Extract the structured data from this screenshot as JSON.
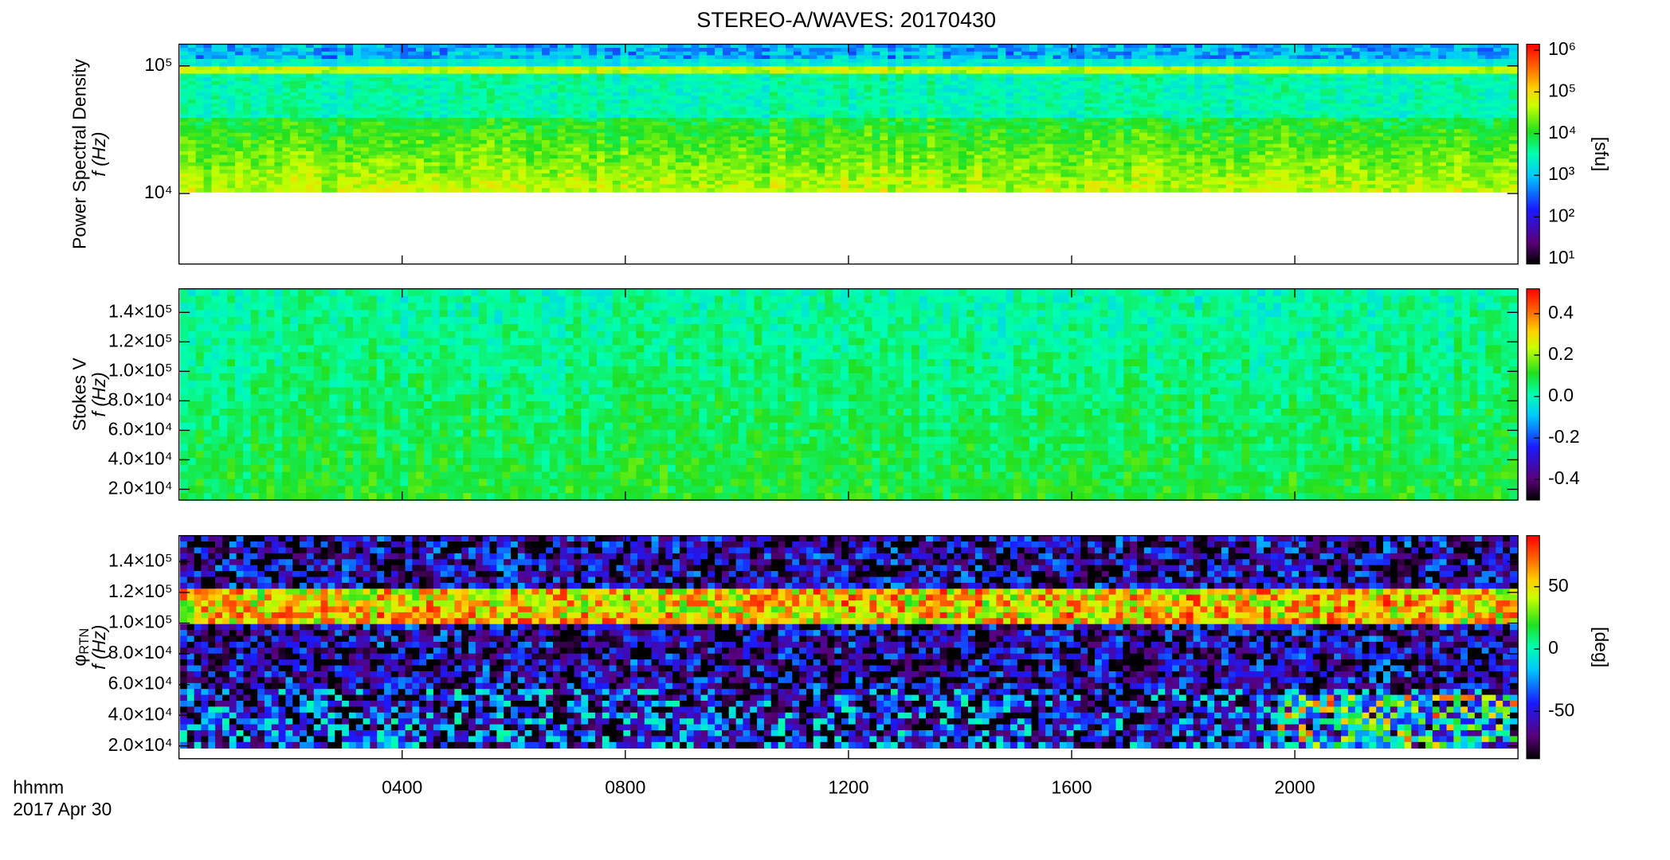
{
  "title": "STEREO-A/WAVES: 20170430",
  "xaxis": {
    "label": "hhmm",
    "date": "2017 Apr 30",
    "xlim": [
      0,
      24
    ],
    "xticks": [
      {
        "value": 4,
        "label": "0400"
      },
      {
        "value": 8,
        "label": "0800"
      },
      {
        "value": 12,
        "label": "1200"
      },
      {
        "value": 16,
        "label": "1600"
      },
      {
        "value": 20,
        "label": "2000"
      }
    ]
  },
  "chart_data": [
    {
      "type": "spectrogram",
      "ylabel": "Power Spectral Density",
      "ylabel2": "f (Hz)",
      "ylog": true,
      "ylim": [
        2800,
        148000
      ],
      "yticks": [
        {
          "value": 10000,
          "label": "10⁴"
        },
        {
          "value": 100000,
          "label": "10⁵"
        }
      ],
      "colorbar": {
        "log": true,
        "lim": [
          7.4,
          1400000
        ],
        "label": "[sfu]",
        "ticks": [
          {
            "value": 10,
            "label": "10¹"
          },
          {
            "value": 100,
            "label": "10²"
          },
          {
            "value": 1000,
            "label": "10³"
          },
          {
            "value": 10000,
            "label": "10⁴"
          },
          {
            "value": 100000,
            "label": "10⁵"
          },
          {
            "value": 1000000,
            "label": "10⁶"
          }
        ]
      }
    },
    {
      "type": "spectrogram",
      "ylabel": "Stokes V",
      "ylabel2": "f (Hz)",
      "ylog": false,
      "ylim": [
        12700,
        156000
      ],
      "yticks": [
        {
          "value": 20000,
          "label": "2.0×10⁴"
        },
        {
          "value": 40000,
          "label": "4.0×10⁴"
        },
        {
          "value": 60000,
          "label": "6.0×10⁴"
        },
        {
          "value": 80000,
          "label": "8.0×10⁴"
        },
        {
          "value": 100000,
          "label": "1.0×10⁵"
        },
        {
          "value": 120000,
          "label": "1.2×10⁵"
        },
        {
          "value": 140000,
          "label": "1.4×10⁵"
        }
      ],
      "colorbar": {
        "log": false,
        "lim": [
          -0.5,
          0.52
        ],
        "label": "",
        "ticks": [
          -0.4,
          -0.2,
          {
            "value": 0,
            "label": "0.0"
          },
          0.2,
          0.4
        ]
      }
    },
    {
      "type": "spectrogram",
      "ylabel": "φ",
      "ylabel_sub": "RTN",
      "ylabel2": "f (Hz)",
      "ylog": false,
      "ylim": [
        11700,
        157000
      ],
      "yticks": [
        {
          "value": 20000,
          "label": "2.0×10⁴"
        },
        {
          "value": 40000,
          "label": "4.0×10⁴"
        },
        {
          "value": 60000,
          "label": "6.0×10⁴"
        },
        {
          "value": 80000,
          "label": "8.0×10⁴"
        },
        {
          "value": 100000,
          "label": "1.0×10⁵"
        },
        {
          "value": 120000,
          "label": "1.2×10⁵"
        },
        {
          "value": 140000,
          "label": "1.4×10⁵"
        }
      ],
      "colorbar": {
        "log": false,
        "lim": [
          -88,
          91
        ],
        "label": "[deg]",
        "ticks": [
          -50,
          0,
          50
        ]
      }
    }
  ]
}
